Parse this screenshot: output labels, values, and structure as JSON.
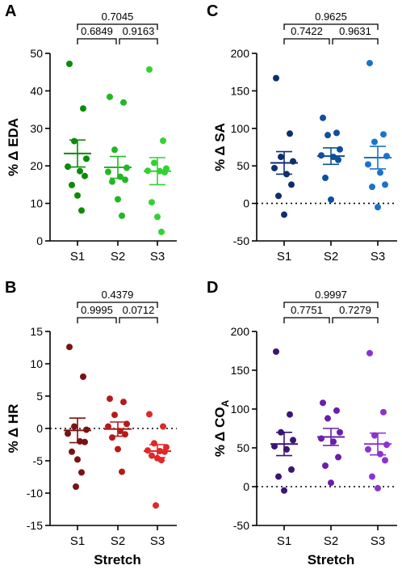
{
  "x_axis_title": "Stretch",
  "chart_data": [
    {
      "panel": "A",
      "type": "scatter",
      "ylabel": "% Δ EDA",
      "ylim": [
        0,
        50
      ],
      "yticks": [
        0,
        10,
        20,
        30,
        40,
        50
      ],
      "zero_line": false,
      "categories": [
        "S1",
        "S2",
        "S3"
      ],
      "colors": [
        "#0a8c0a",
        "#22b822",
        "#33d133"
      ],
      "points": [
        [
          47.2,
          35.3,
          26.6,
          21.9,
          19.8,
          18.6,
          17.3,
          14.9,
          12.1,
          8.1
        ],
        [
          38.4,
          36.9,
          24.3,
          19.5,
          18.4,
          17.1,
          16.3,
          15.8,
          11.1,
          6.7
        ],
        [
          45.7,
          26.7,
          20.8,
          19.3,
          18.7,
          18.6,
          18.3,
          10.3,
          6.4,
          2.4
        ]
      ],
      "mean": [
        23.3,
        19.6,
        18.6
      ],
      "sem": [
        3.6,
        2.9,
        3.6
      ],
      "comparisons": [
        {
          "from": "S1",
          "to": "S2",
          "p": "0.6849"
        },
        {
          "from": "S2",
          "to": "S3",
          "p": "0.9163"
        },
        {
          "from": "S1",
          "to": "S3",
          "p": "0.7045"
        }
      ]
    },
    {
      "panel": "B",
      "type": "scatter",
      "ylabel": "% Δ HR",
      "ylim": [
        -15,
        15
      ],
      "yticks": [
        -15,
        -10,
        -5,
        0,
        5,
        10,
        15
      ],
      "zero_line": true,
      "categories": [
        "S1",
        "S2",
        "S3"
      ],
      "colors": [
        "#7a1212",
        "#b51a1a",
        "#e02828"
      ],
      "points": [
        [
          12.6,
          8.0,
          0.3,
          -0.2,
          -0.8,
          -2.0,
          -2.1,
          -3.6,
          -4.8,
          -6.8,
          -9.0
        ],
        [
          4.6,
          4.1,
          2.1,
          0.7,
          0.3,
          -0.4,
          -0.9,
          -1.4,
          -3.2,
          -6.7
        ],
        [
          2.2,
          0.3,
          -2.3,
          -2.9,
          -3.4,
          -3.5,
          -3.6,
          -4.2,
          -4.6,
          -4.9,
          -11.9
        ]
      ],
      "mean": [
        -0.3,
        -0.1,
        -3.5
      ],
      "sem": [
        1.9,
        1.1,
        1.0
      ],
      "comparisons": [
        {
          "from": "S1",
          "to": "S2",
          "p": "0.9995"
        },
        {
          "from": "S2",
          "to": "S3",
          "p": "0.0712"
        },
        {
          "from": "S1",
          "to": "S3",
          "p": "0.4379"
        }
      ]
    },
    {
      "panel": "C",
      "type": "scatter",
      "ylabel": "% Δ SA",
      "ylim": [
        -50,
        200
      ],
      "yticks": [
        -50,
        0,
        50,
        100,
        150,
        200
      ],
      "zero_line": true,
      "categories": [
        "S1",
        "S2",
        "S3"
      ],
      "colors": [
        "#0e2f6e",
        "#0e4f9e",
        "#1b73c8"
      ],
      "points": [
        [
          167,
          93,
          62,
          56,
          47,
          39,
          25,
          10,
          -15
        ],
        [
          114,
          94,
          91,
          72,
          64,
          62,
          58,
          34,
          5
        ],
        [
          187,
          92,
          82,
          63,
          52,
          41,
          25,
          22,
          -5
        ]
      ],
      "mean": [
        54,
        63,
        61
      ],
      "sem": [
        15,
        11,
        15
      ],
      "comparisons": [
        {
          "from": "S1",
          "to": "S2",
          "p": "0.7422"
        },
        {
          "from": "S2",
          "to": "S3",
          "p": "0.9631"
        },
        {
          "from": "S1",
          "to": "S3",
          "p": "0.9625"
        }
      ]
    },
    {
      "panel": "D",
      "type": "scatter",
      "ylabel": "% Δ CO",
      "ylabel_subscript": "A",
      "ylim": [
        -50,
        200
      ],
      "yticks": [
        -50,
        0,
        50,
        100,
        150,
        200
      ],
      "zero_line": true,
      "categories": [
        "S1",
        "S2",
        "S3"
      ],
      "colors": [
        "#3b1573",
        "#6a1eaa",
        "#8b33d1"
      ],
      "points": [
        [
          174,
          93,
          70,
          60,
          52,
          48,
          22,
          13,
          -5
        ],
        [
          108,
          98,
          88,
          70,
          62,
          58,
          38,
          27,
          5
        ],
        [
          172,
          96,
          66,
          54,
          48,
          42,
          34,
          13,
          -2
        ]
      ],
      "mean": [
        55,
        64,
        55
      ],
      "sem": [
        15,
        11,
        14
      ],
      "comparisons": [
        {
          "from": "S1",
          "to": "S2",
          "p": "0.7751"
        },
        {
          "from": "S2",
          "to": "S3",
          "p": "0.7279"
        },
        {
          "from": "S1",
          "to": "S3",
          "p": "0.9997"
        }
      ]
    }
  ]
}
